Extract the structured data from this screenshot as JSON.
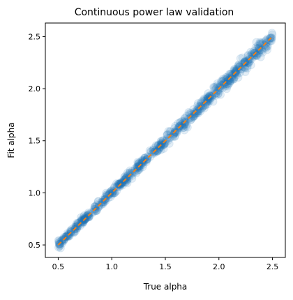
{
  "chart_data": {
    "type": "scatter",
    "title": "Continuous power law validation",
    "xlabel": "True alpha",
    "ylabel": "Fit alpha",
    "xlim": [
      0.38,
      2.62
    ],
    "ylim": [
      0.38,
      2.63
    ],
    "xticks": [
      0.5,
      1.0,
      1.5,
      2.0,
      2.5
    ],
    "xtick_labels": [
      "0.5",
      "1.0",
      "1.5",
      "2.0",
      "2.5"
    ],
    "yticks": [
      0.5,
      1.0,
      1.5,
      2.0,
      2.5
    ],
    "ytick_labels": [
      "0.5",
      "1.0",
      "1.5",
      "2.0",
      "2.5"
    ],
    "grid": false,
    "scatter": {
      "x_range": [
        0.5,
        2.5
      ],
      "relation": "y = x",
      "spread_low_alpha": 0.015,
      "spread_high_alpha": 0.035,
      "color": "#1f77b4",
      "alpha": 0.12
    },
    "reference_line": {
      "x": [
        0.5,
        2.5
      ],
      "y": [
        0.5,
        2.5
      ],
      "style": "dashed",
      "color": "#ff7f0e"
    }
  }
}
